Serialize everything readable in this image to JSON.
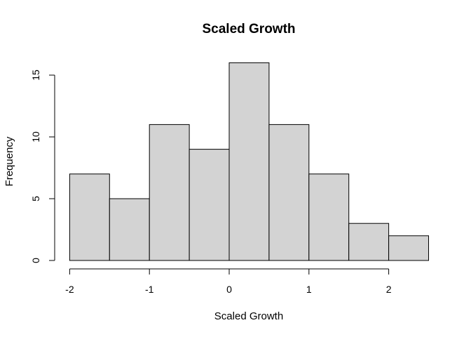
{
  "chart_data": {
    "type": "bar",
    "title": "Scaled Growth",
    "xlabel": "Scaled Growth",
    "ylabel": "Frequency",
    "bin_edges": [
      -2,
      -1.5,
      -1,
      -0.5,
      0,
      0.5,
      1,
      1.5,
      2,
      2.5
    ],
    "values": [
      7,
      5,
      11,
      9,
      16,
      11,
      7,
      3,
      2
    ],
    "x_ticks": [
      -2,
      -1,
      0,
      1,
      2
    ],
    "y_ticks": [
      0,
      5,
      10,
      15
    ],
    "bar_color": "#d3d3d3",
    "grid": false
  }
}
